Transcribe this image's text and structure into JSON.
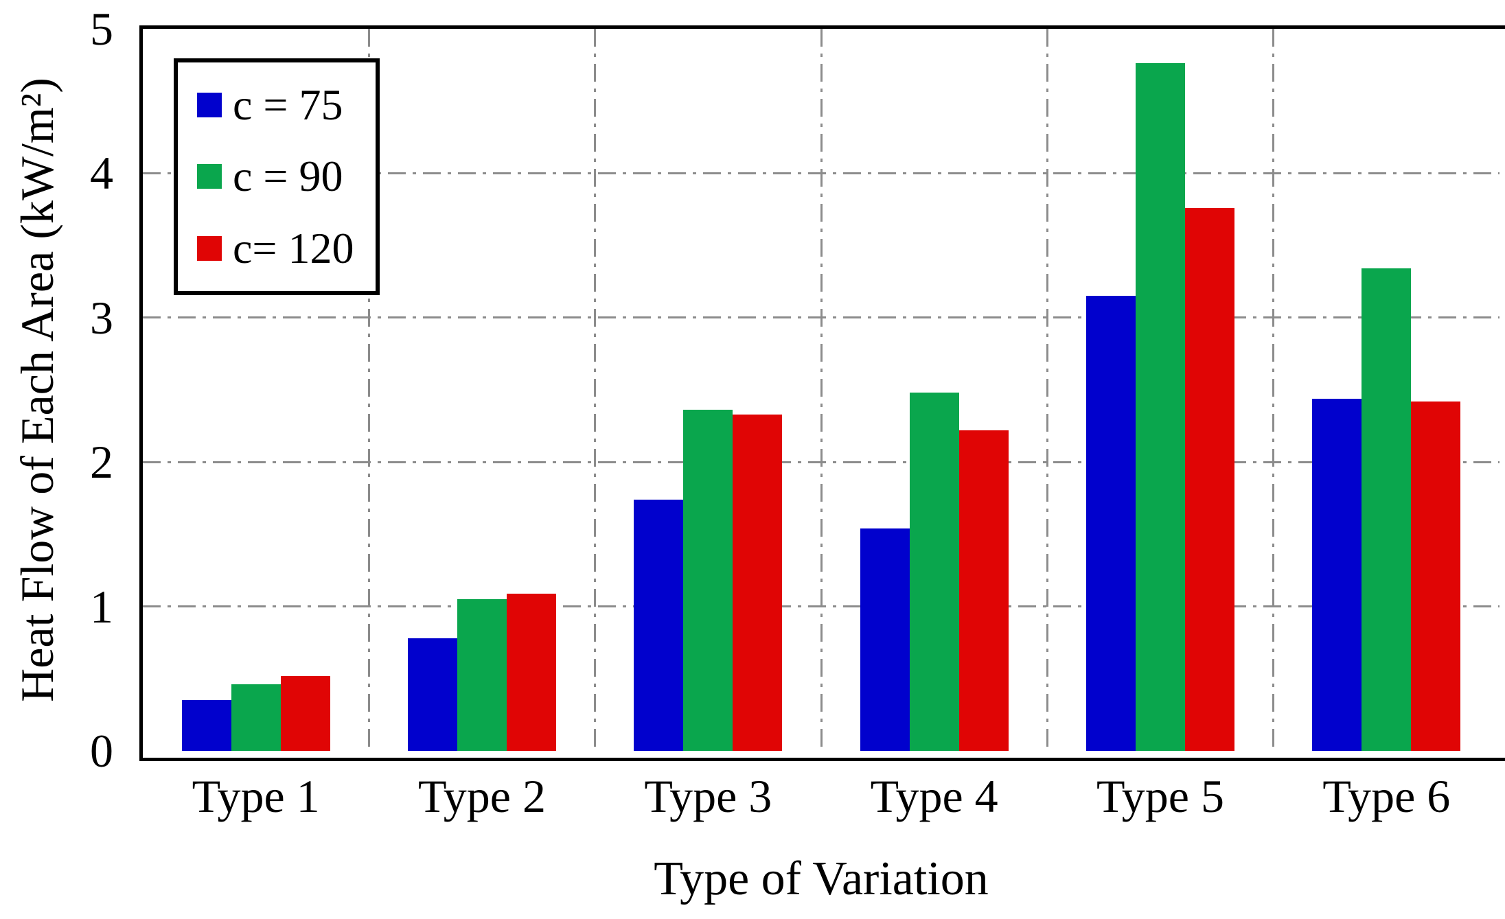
{
  "chart_data": {
    "type": "bar",
    "title": "",
    "xlabel": "Type of Variation",
    "ylabel": "Heat Flow of Each Area (kW/m²)",
    "categories": [
      "Type 1",
      "Type 2",
      "Type 3",
      "Type 4",
      "Type 5",
      "Type 6"
    ],
    "series": [
      {
        "name": "c = 75",
        "color": "#0101CD",
        "values": [
          0.35,
          0.78,
          1.74,
          1.54,
          3.15,
          2.44
        ]
      },
      {
        "name": "c = 90",
        "color": "#0AA64D",
        "values": [
          0.46,
          1.05,
          2.36,
          2.48,
          4.76,
          3.34
        ]
      },
      {
        "name": "c= 120",
        "color": "#E00505",
        "values": [
          0.52,
          1.09,
          2.33,
          2.22,
          3.76,
          2.42
        ]
      }
    ],
    "ylim": [
      0,
      5
    ],
    "yticks": [
      0,
      1,
      2,
      3,
      4,
      5
    ],
    "grid": "dash-dot gray; horizontal at integer ticks, vertical at category boundaries",
    "legend_position": "upper-left inside plot"
  },
  "colors": {
    "grid": "#8C8C8C",
    "axis": "#000000",
    "background": "#FFFFFF"
  }
}
